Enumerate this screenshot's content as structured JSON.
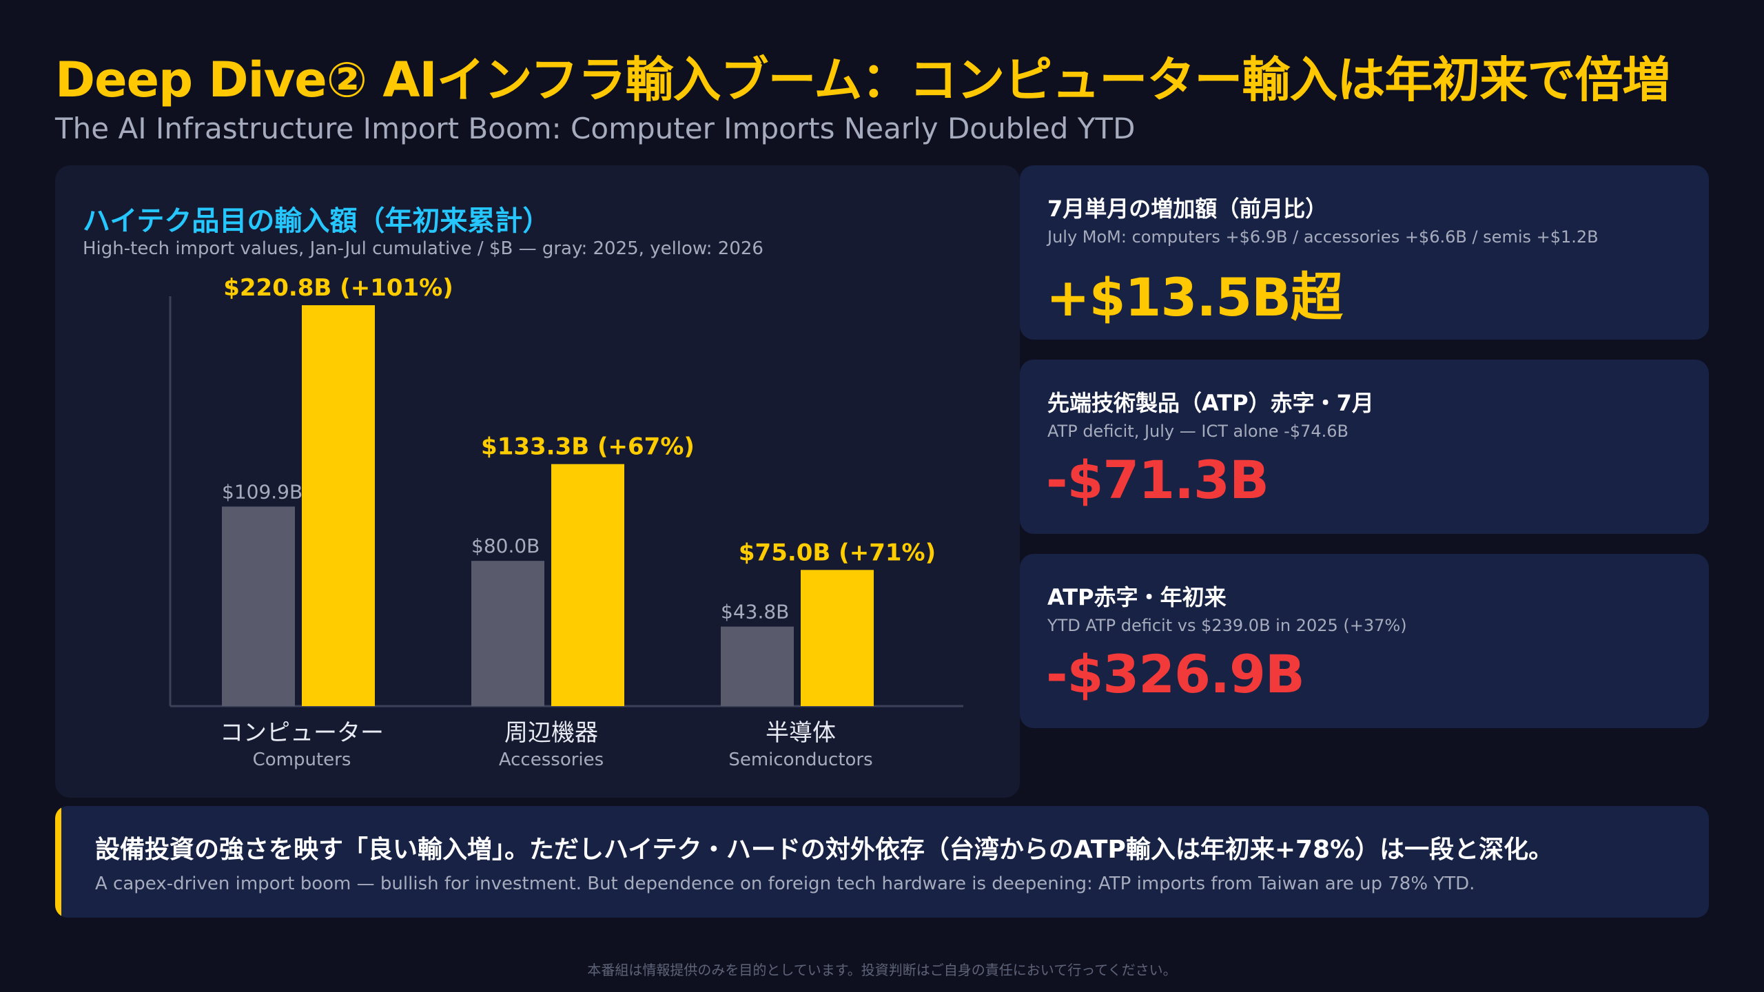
{
  "header": {
    "title": "Deep Dive② AIインフラ輸入ブーム：コンピューター輸入は年初来で倍増",
    "subtitle": "The AI Infrastructure Import Boom: Computer Imports Nearly Doubled YTD"
  },
  "chart_panel": {
    "title": "ハイテク品目の輸入額（年初来累計）",
    "subtitle": "High-tech import values, Jan-Jul cumulative / $B — gray: 2025, yellow: 2026"
  },
  "chart_data": {
    "type": "bar",
    "categories": [
      {
        "label_ja": "コンピューター",
        "label_en": "Computers"
      },
      {
        "label_ja": "周辺機器",
        "label_en": "Accessories"
      },
      {
        "label_ja": "半導体",
        "label_en": "Semiconductors"
      }
    ],
    "series": [
      {
        "values": [
          109.9,
          80.0,
          43.8
        ],
        "labels": [
          "$109.9B",
          "$80.0B",
          "$43.8B"
        ],
        "color": "#595a6b"
      },
      {
        "values": [
          220.8,
          133.3,
          75.0
        ],
        "labels": [
          "$220.8B (+101%)",
          "$133.3B (+67%)",
          "$75.0B (+71%)"
        ],
        "color": "#ffcc00"
      }
    ],
    "ylim": [
      0,
      225
    ],
    "grid": false,
    "legend": "none"
  },
  "cards": [
    {
      "title": "7月単月の増加額（前月比）",
      "subtitle": "July MoM: computers +$6.9B / accessories +$6.6B / semis +$1.2B",
      "value": "+$13.5B超",
      "color": "#ffc800"
    },
    {
      "title": "先端技術製品（ATP）赤字・7月",
      "subtitle": "ATP deficit, July — ICT alone -$74.6B",
      "value": "-$71.3B",
      "color": "#f23a3a"
    },
    {
      "title": "ATP赤字・年初来",
      "subtitle": "YTD ATP deficit vs $239.0B in 2025 (+37%)",
      "value": "-$326.9B",
      "color": "#f23a3a"
    }
  ],
  "note": {
    "title": "設備投資の強さを映す「良い輸入増」。ただしハイテク・ハードの対外依存（台湾からのATP輸入は年初来+78%）は一段と深化。",
    "subtitle": "A capex-driven import boom — bullish for investment. But dependence on foreign tech hardware is deepening: ATP imports from Taiwan are up 78% YTD.",
    "accent": "#ffc800"
  },
  "footer": {
    "disclaimer": "本番組は情報提供のみを目的としています。投資判断はご自身の責任において行ってください。"
  }
}
